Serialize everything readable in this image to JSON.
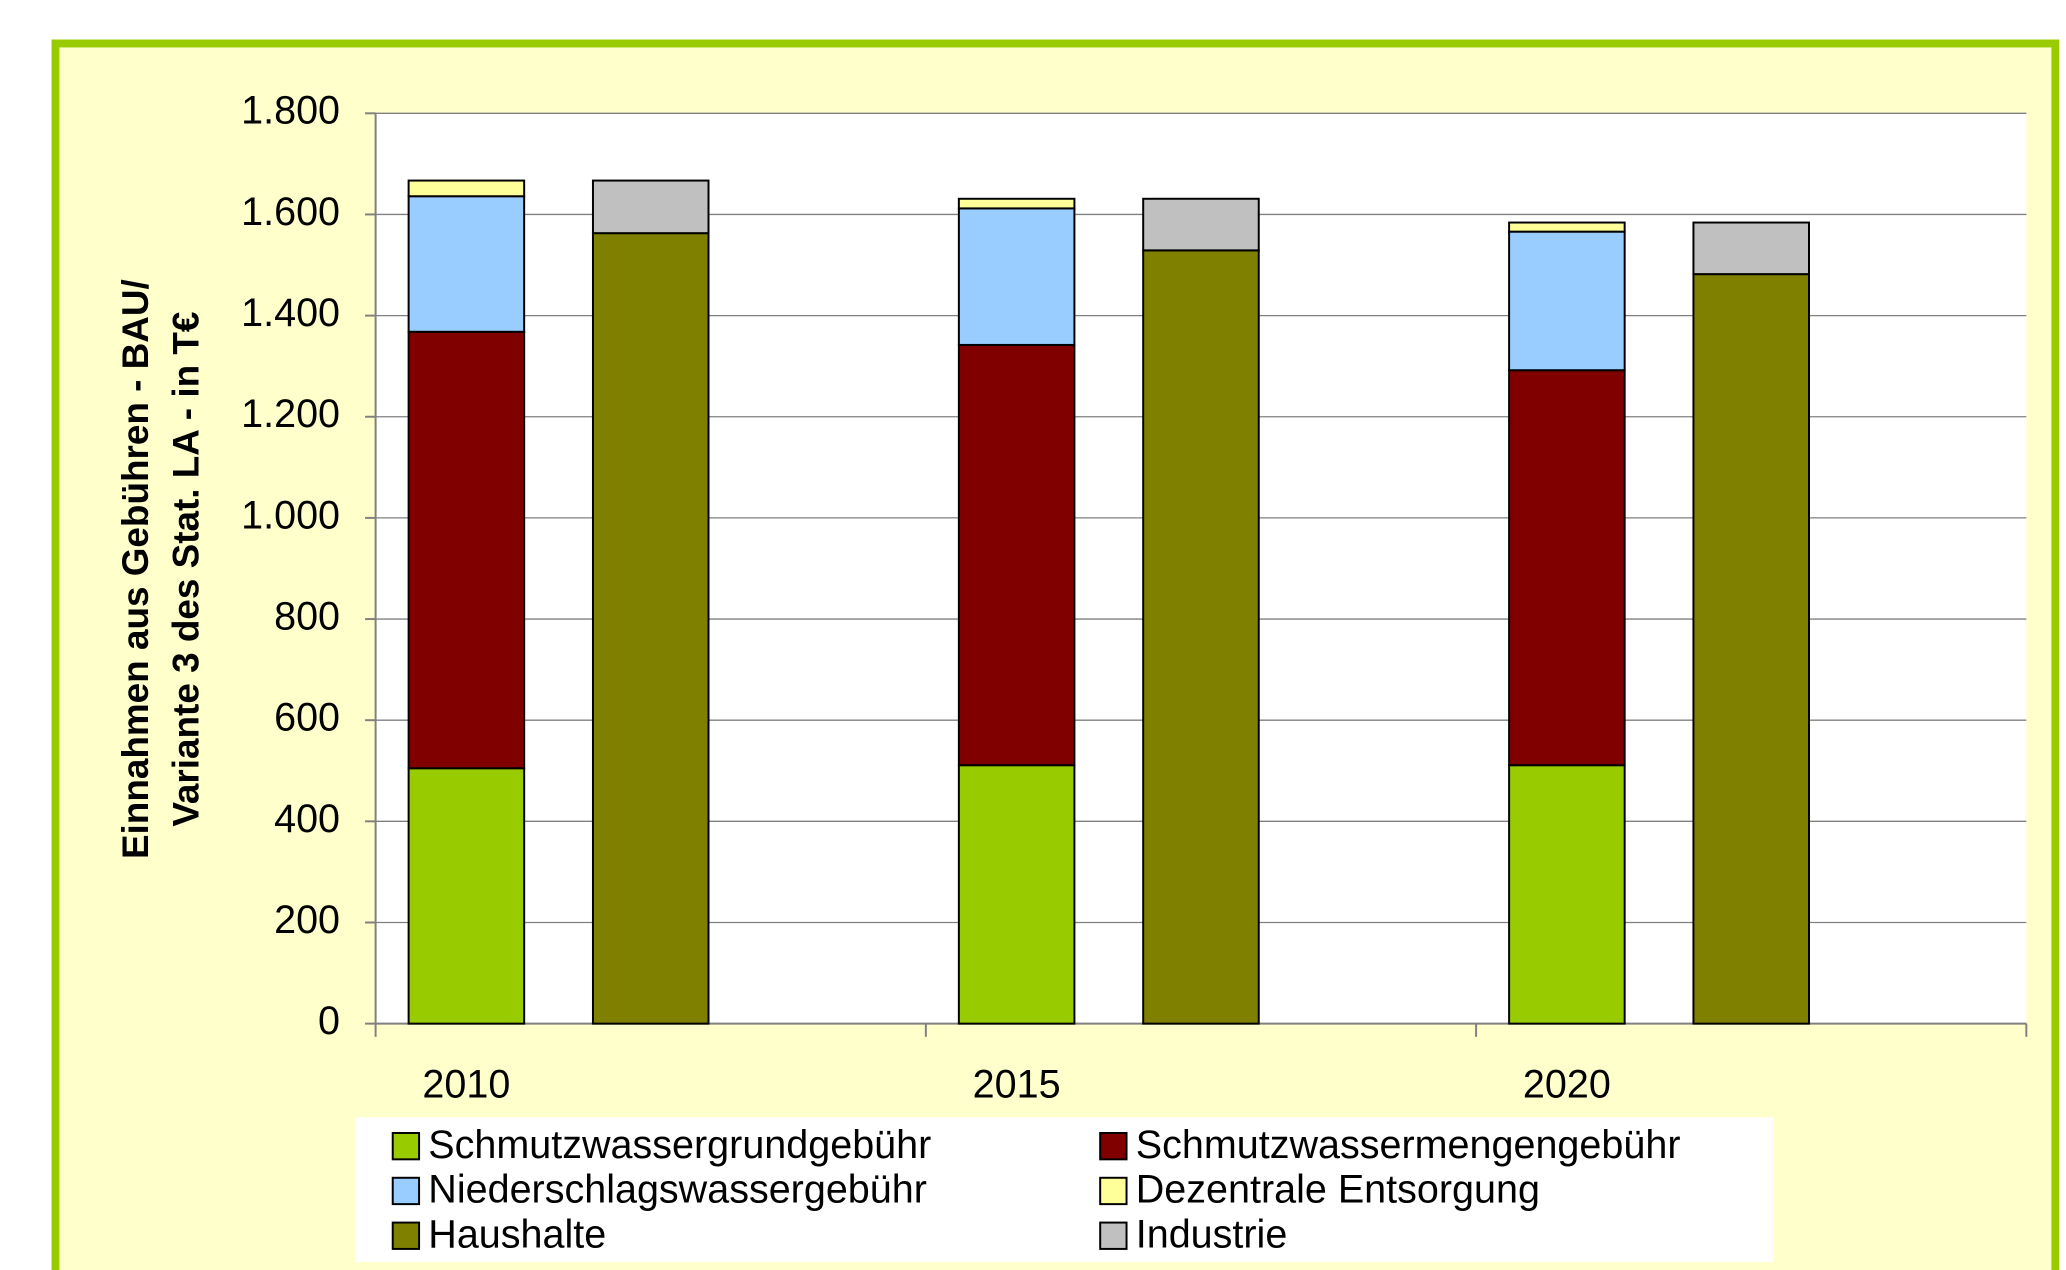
{
  "chart_data": {
    "type": "stacked_bar",
    "y_label": [
      "Einnahmen aus Gebühren - BAU/",
      "Variante 3 des Stat. LA - in T€"
    ],
    "categories": [
      "2010",
      "2015",
      "2020"
    ],
    "series": [
      {
        "name": "Schmutzwassergrundgebühr",
        "color": "#99cc00",
        "stack": 1,
        "values": [
          505,
          511,
          511
        ]
      },
      {
        "name": "Schmutzwassermengengebühr",
        "color": "#800000",
        "stack": 1,
        "values": [
          863,
          831,
          781
        ]
      },
      {
        "name": "Niederschlagswassergebühr",
        "color": "#99ccff",
        "stack": 1,
        "values": [
          268,
          270,
          274
        ]
      },
      {
        "name": "Dezentrale Entsorgung",
        "color": "#ffff99",
        "stack": 1,
        "values": [
          31,
          19,
          18
        ]
      },
      {
        "name": "Haushalte",
        "color": "#808000",
        "stack": 2,
        "values": [
          1563,
          1529,
          1482
        ]
      },
      {
        "name": "Industrie",
        "color": "#c0c0c0",
        "stack": 2,
        "values": [
          104,
          102,
          102
        ]
      }
    ],
    "ylim": [
      0,
      1800
    ],
    "yticks": [
      0,
      200,
      400,
      600,
      800,
      {
        "value": 1000,
        "label": "1.000"
      },
      {
        "value": 1200,
        "label": "1.200"
      },
      {
        "value": 1400,
        "label": "1.400"
      },
      {
        "value": 1600,
        "label": "1.600"
      },
      {
        "value": 1800,
        "label": "1.800"
      }
    ],
    "grid": true
  }
}
